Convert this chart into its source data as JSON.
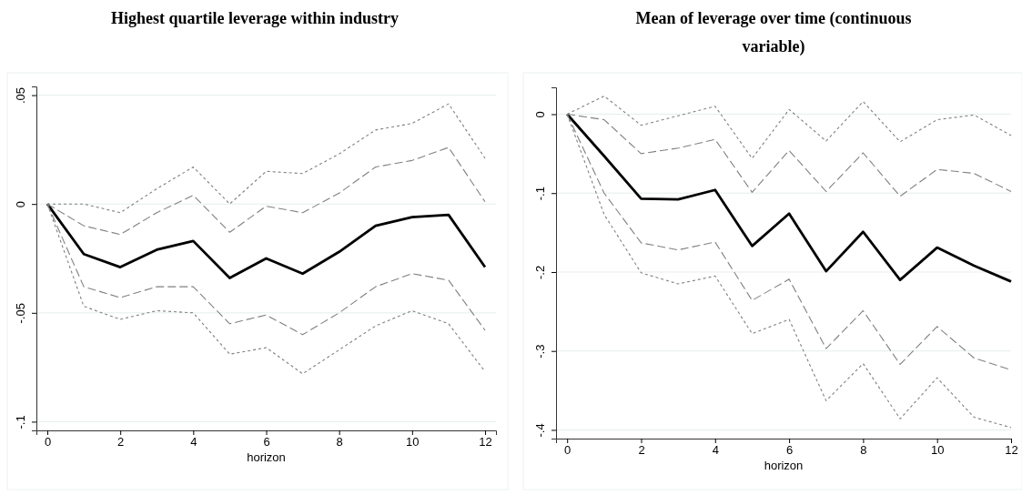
{
  "chart_data": [
    {
      "type": "line",
      "title": "Highest quartile leverage within industry",
      "xlabel": "horizon",
      "x": [
        0,
        1,
        2,
        3,
        4,
        5,
        6,
        7,
        8,
        9,
        10,
        11,
        12
      ],
      "xlim": [
        -0.3,
        12.3
      ],
      "xticks": [
        0,
        2,
        4,
        6,
        8,
        10,
        12
      ],
      "ylim": [
        -0.104,
        0.054
      ],
      "yticks": [
        {
          "value": -0.1,
          "label": "-.1"
        },
        {
          "value": -0.05,
          "label": "-.05"
        },
        0,
        {
          "value": 0.05,
          "label": ".05"
        }
      ],
      "grid": "y",
      "marker": "none",
      "series": [
        {
          "color": "#000000",
          "line_style": "solid",
          "values": [
            0,
            -0.023,
            -0.029,
            -0.021,
            -0.017,
            -0.034,
            -0.025,
            -0.032,
            -0.022,
            -0.01,
            -0.006,
            -0.005,
            -0.029
          ]
        },
        {
          "color": "#808080",
          "line_style": "dashed",
          "values": [
            0,
            -0.01,
            -0.014,
            -0.004,
            0.004,
            -0.013,
            -0.001,
            -0.004,
            0.005,
            0.017,
            0.02,
            0.026,
            0.001
          ]
        },
        {
          "color": "#808080",
          "line_style": "dotted",
          "values": [
            0,
            0,
            -0.004,
            0.007,
            0.017,
            0,
            0.015,
            0.014,
            0.023,
            0.034,
            0.037,
            0.046,
            0.021
          ]
        },
        {
          "color": "#808080",
          "line_style": "dashed",
          "values": [
            0,
            -0.038,
            -0.043,
            -0.038,
            -0.038,
            -0.055,
            -0.051,
            -0.06,
            -0.05,
            -0.038,
            -0.032,
            -0.035,
            -0.058
          ]
        },
        {
          "color": "#808080",
          "line_style": "dotted",
          "values": [
            0,
            -0.047,
            -0.053,
            -0.049,
            -0.05,
            -0.069,
            -0.066,
            -0.078,
            -0.067,
            -0.056,
            -0.049,
            -0.055,
            -0.077
          ]
        }
      ]
    },
    {
      "type": "line",
      "title": "Mean of leverage over time (continuous variable)",
      "xlabel": "horizon",
      "x": [
        0,
        1,
        2,
        3,
        4,
        5,
        6,
        7,
        8,
        9,
        10,
        11,
        12
      ],
      "xlim": [
        -0.3,
        12.0
      ],
      "xticks": [
        0,
        2,
        4,
        6,
        8,
        10,
        12
      ],
      "ylim": [
        -0.411,
        0.034
      ],
      "yticks": [
        {
          "value": -0.4,
          "label": "-.4"
        },
        {
          "value": -0.3,
          "label": "-.3"
        },
        {
          "value": -0.2,
          "label": "-.2"
        },
        {
          "value": -0.1,
          "label": "-.1"
        },
        0
      ],
      "grid": "y",
      "marker": "none",
      "series": [
        {
          "color": "#000000",
          "line_style": "solid",
          "values": [
            0,
            -0.053,
            -0.107,
            -0.108,
            -0.096,
            -0.167,
            -0.126,
            -0.199,
            -0.149,
            -0.21,
            -0.169,
            -0.192,
            -0.212
          ]
        },
        {
          "color": "#808080",
          "line_style": "dashed",
          "values": [
            0,
            -0.007,
            -0.05,
            -0.043,
            -0.032,
            -0.099,
            -0.046,
            -0.098,
            -0.049,
            -0.104,
            -0.07,
            -0.075,
            -0.098
          ]
        },
        {
          "color": "#808080",
          "line_style": "dotted",
          "values": [
            0,
            0.023,
            -0.014,
            -0.002,
            0.01,
            -0.056,
            0.006,
            -0.034,
            0.016,
            -0.035,
            -0.007,
            -0.001,
            -0.027
          ]
        },
        {
          "color": "#808080",
          "line_style": "dashed",
          "values": [
            0,
            -0.1,
            -0.163,
            -0.172,
            -0.162,
            -0.236,
            -0.209,
            -0.297,
            -0.249,
            -0.317,
            -0.269,
            -0.309,
            -0.324
          ]
        },
        {
          "color": "#808080",
          "line_style": "dotted",
          "values": [
            0,
            -0.127,
            -0.201,
            -0.215,
            -0.205,
            -0.278,
            -0.26,
            -0.363,
            -0.316,
            -0.386,
            -0.334,
            -0.384,
            -0.397
          ]
        }
      ]
    }
  ]
}
